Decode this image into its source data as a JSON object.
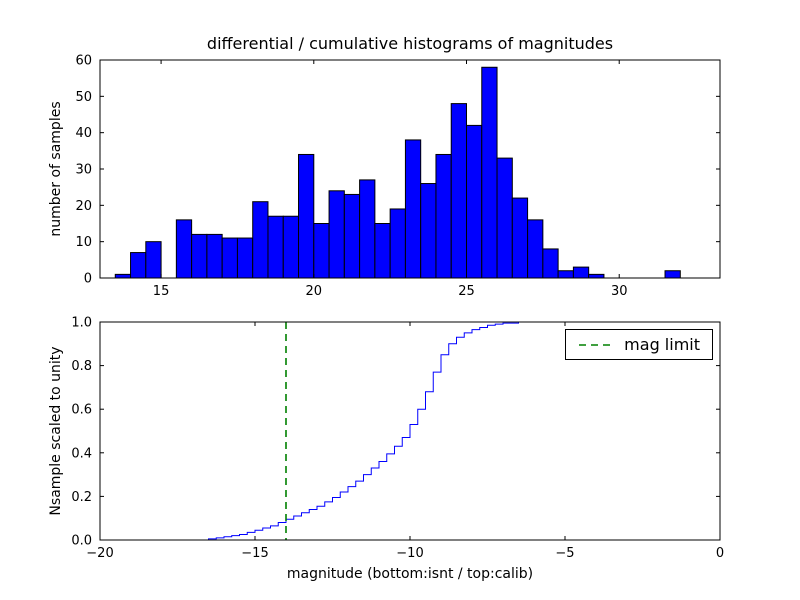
{
  "figure": {
    "background": "#ffffff"
  },
  "chart_data": [
    {
      "type": "bar",
      "name": "differential-histogram",
      "title": "differential / cumulative histograms of magnitudes",
      "ylabel": "number of samples",
      "xlim": [
        13,
        33.3
      ],
      "ylim": [
        0,
        60
      ],
      "xticks": [
        15,
        20,
        25,
        30
      ],
      "xticklabels": [
        "15",
        "20",
        "25",
        "30"
      ],
      "yticks": [
        0,
        10,
        20,
        30,
        40,
        50,
        60
      ],
      "yticklabels": [
        "0",
        "10",
        "20",
        "30",
        "40",
        "50",
        "60"
      ],
      "grid": false,
      "bar_color": "#0000ff",
      "bar_edge_color": "#000000",
      "bin_start": 13.5,
      "bin_width": 0.5,
      "values": [
        1,
        7,
        10,
        0,
        16,
        12,
        12,
        11,
        11,
        21,
        17,
        17,
        34,
        15,
        24,
        23,
        27,
        15,
        19,
        38,
        26,
        34,
        48,
        42,
        58,
        33,
        22,
        16,
        8,
        2,
        3,
        1,
        0,
        0,
        0,
        0,
        2
      ]
    },
    {
      "type": "line",
      "name": "cumulative-histogram",
      "xlabel": "magnitude (bottom:isnt / top:calib)",
      "ylabel": "Nsample scaled to unity",
      "xlim": [
        -20,
        0
      ],
      "ylim": [
        0,
        1
      ],
      "xticks": [
        -20,
        -15,
        -10,
        -5,
        0
      ],
      "xticklabels": [
        "−20",
        "−15",
        "−10",
        "−5",
        "0"
      ],
      "yticks": [
        0,
        0.2,
        0.4,
        0.6,
        0.8,
        1.0
      ],
      "yticklabels": [
        "0.0",
        "0.2",
        "0.4",
        "0.6",
        "0.8",
        "1.0"
      ],
      "grid": false,
      "step": true,
      "line_color": "#0000ff",
      "x": [
        -20,
        -16.5,
        -16.25,
        -16,
        -15.75,
        -15.5,
        -15.25,
        -15,
        -14.75,
        -14.5,
        -14.25,
        -14,
        -13.75,
        -13.5,
        -13.25,
        -13,
        -12.75,
        -12.5,
        -12.25,
        -12,
        -11.75,
        -11.5,
        -11.25,
        -11,
        -10.75,
        -10.5,
        -10.25,
        -10,
        -9.75,
        -9.5,
        -9.25,
        -9,
        -8.75,
        -8.5,
        -8.25,
        -8,
        -7.75,
        -7.5,
        -7.25,
        -7,
        -6.5
      ],
      "y": [
        0,
        0.005,
        0.01,
        0.015,
        0.02,
        0.025,
        0.035,
        0.045,
        0.055,
        0.065,
        0.08,
        0.095,
        0.11,
        0.125,
        0.14,
        0.155,
        0.175,
        0.195,
        0.22,
        0.245,
        0.27,
        0.3,
        0.33,
        0.36,
        0.395,
        0.43,
        0.47,
        0.53,
        0.6,
        0.68,
        0.77,
        0.85,
        0.9,
        0.93,
        0.95,
        0.965,
        0.975,
        0.985,
        0.99,
        0.995,
        1.0
      ],
      "vline": {
        "x": -14,
        "color": "#008000",
        "style": "dashed",
        "label": "mag limit"
      },
      "legend": {
        "label": "mag limit",
        "position": "upper right"
      }
    }
  ]
}
